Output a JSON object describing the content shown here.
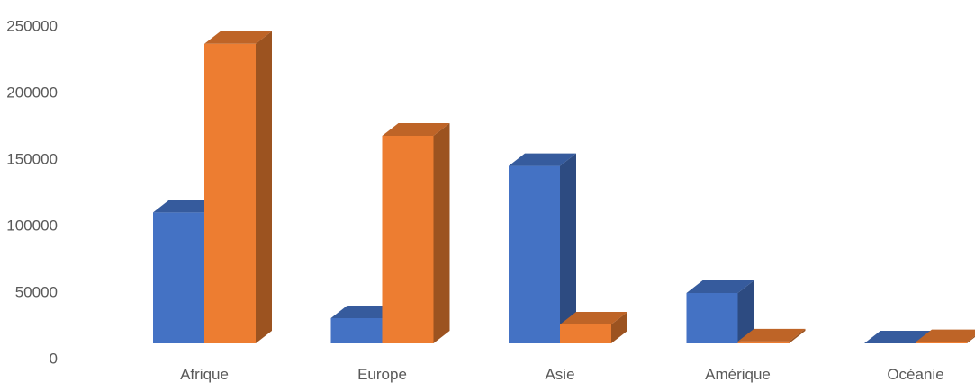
{
  "chart_data": {
    "type": "bar",
    "title": "",
    "xlabel": "",
    "ylabel": "",
    "categories": [
      "Afrique",
      "Europe",
      "Asie",
      "Amérique",
      "Océanie"
    ],
    "series": [
      {
        "values": [
          104000,
          20000,
          141000,
          40000,
          0
        ],
        "color": "#4472C4"
      },
      {
        "values": [
          238000,
          165000,
          15000,
          1500,
          1000
        ],
        "color": "#ED7D31"
      }
    ],
    "ylim": [
      0,
      250000
    ],
    "yticks": [
      "0",
      "50000",
      "100000",
      "150000",
      "200000",
      "250000"
    ],
    "grid": false,
    "legend": "none",
    "style": "3d-clustered-column"
  }
}
